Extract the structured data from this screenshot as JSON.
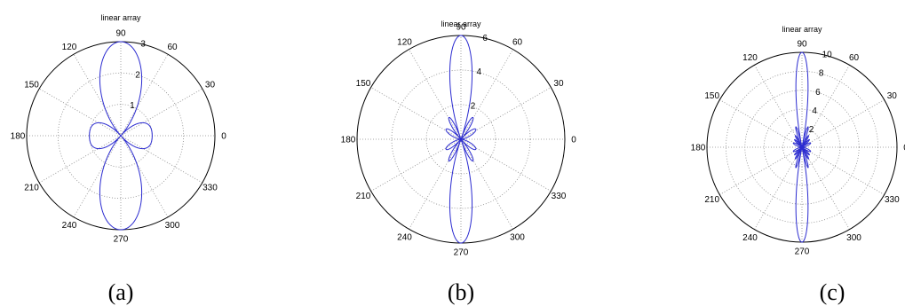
{
  "chart_data": [
    {
      "type": "polar-line",
      "title": "linear array",
      "caption": "(a)",
      "rlim": [
        0,
        3
      ],
      "r_ticks": [
        1,
        2,
        3
      ],
      "angle_ticks": [
        "0",
        "30",
        "60",
        "90",
        "120",
        "150",
        "180",
        "210",
        "240",
        "270",
        "300",
        "330"
      ],
      "grid": true,
      "series": [
        {
          "elements": 3,
          "peak": 3,
          "color": "#2b2bd0"
        }
      ]
    },
    {
      "type": "polar-line",
      "title": "linear array",
      "caption": "(b)",
      "rlim": [
        0,
        6
      ],
      "r_ticks": [
        2,
        4,
        6
      ],
      "angle_ticks": [
        "0",
        "30",
        "60",
        "90",
        "120",
        "150",
        "180",
        "210",
        "240",
        "270",
        "300",
        "330"
      ],
      "grid": true,
      "series": [
        {
          "elements": 6,
          "peak": 6,
          "color": "#2b2bd0"
        }
      ]
    },
    {
      "type": "polar-line",
      "title": "linear array",
      "caption": "(c)",
      "rlim": [
        0,
        10
      ],
      "r_ticks": [
        2,
        4,
        6,
        8,
        10
      ],
      "angle_ticks": [
        "0",
        "30",
        "60",
        "90",
        "120",
        "150",
        "180",
        "210",
        "240",
        "270",
        "300",
        "330"
      ],
      "grid": true,
      "series": [
        {
          "elements": 10,
          "peak": 10,
          "color": "#2b2bd0"
        }
      ]
    }
  ]
}
